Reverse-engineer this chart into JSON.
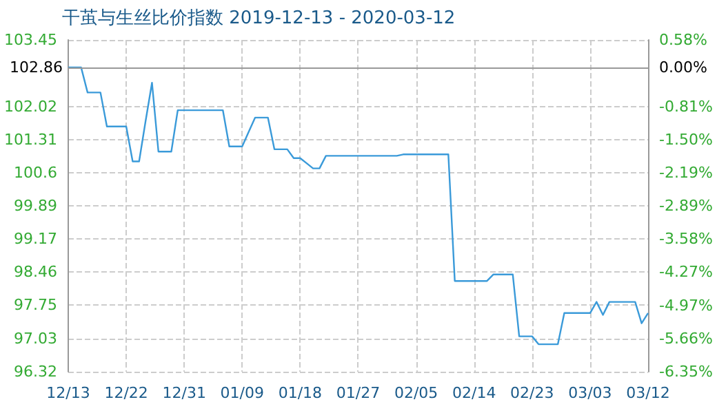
{
  "chart_data": {
    "type": "line",
    "title": "干茧与生丝比价指数 2019-12-13 - 2020-03-12",
    "x": [
      "2019-12-13",
      "2019-12-15",
      "2019-12-16",
      "2019-12-18",
      "2019-12-19",
      "2019-12-22",
      "2019-12-23",
      "2019-12-24",
      "2019-12-25",
      "2019-12-26",
      "2019-12-27",
      "2019-12-29",
      "2019-12-30",
      "2020-01-06",
      "2020-01-07",
      "2020-01-09",
      "2020-01-10",
      "2020-01-11",
      "2020-01-13",
      "2020-01-14",
      "2020-01-16",
      "2020-01-17",
      "2020-01-18",
      "2020-01-19",
      "2020-01-20",
      "2020-01-21",
      "2020-01-22",
      "2020-02-02",
      "2020-02-03",
      "2020-02-10",
      "2020-02-11",
      "2020-02-16",
      "2020-02-17",
      "2020-02-20",
      "2020-02-21",
      "2020-02-23",
      "2020-02-24",
      "2020-02-27",
      "2020-02-28",
      "2020-03-03",
      "2020-03-04",
      "2020-03-05",
      "2020-03-06",
      "2020-03-10",
      "2020-03-11",
      "2020-03-12"
    ],
    "series": [
      {
        "color": "#3a9ad9",
        "values": [
          102.86,
          102.86,
          102.32,
          102.32,
          101.59,
          101.59,
          100.84,
          100.84,
          101.7,
          102.53,
          101.05,
          101.05,
          101.94,
          101.94,
          101.16,
          101.16,
          101.47,
          101.78,
          101.78,
          101.1,
          101.1,
          100.91,
          100.91,
          100.8,
          100.69,
          100.69,
          100.96,
          100.96,
          100.99,
          100.99,
          98.27,
          98.27,
          98.41,
          98.41,
          97.08,
          97.08,
          96.91,
          96.91,
          97.58,
          97.58,
          97.82,
          97.54,
          97.82,
          97.82,
          97.36,
          97.58
        ]
      }
    ],
    "xlim": [
      "2019-12-13",
      "2020-03-12"
    ],
    "xticks": [
      {
        "value": "2019-12-13",
        "label": "12/13"
      },
      {
        "value": "2019-12-22",
        "label": "12/22"
      },
      {
        "value": "2019-12-31",
        "label": "12/31"
      },
      {
        "value": "2020-01-09",
        "label": "01/09"
      },
      {
        "value": "2020-01-18",
        "label": "01/18"
      },
      {
        "value": "2020-01-27",
        "label": "01/27"
      },
      {
        "value": "2020-02-05",
        "label": "02/05"
      },
      {
        "value": "2020-02-14",
        "label": "02/14"
      },
      {
        "value": "2020-02-23",
        "label": "02/23"
      },
      {
        "value": "2020-03-03",
        "label": "03/03"
      },
      {
        "value": "2020-03-12",
        "label": "03/12"
      }
    ],
    "ylim": [
      96.32,
      103.45
    ],
    "yticks": [
      96.32,
      97.03,
      97.75,
      98.46,
      99.17,
      99.89,
      100.6,
      101.31,
      102.02,
      103.45
    ],
    "y2lim": [
      -6.35,
      0.58
    ],
    "y2ticks": [
      {
        "value": -6.35,
        "label": "-6.35%"
      },
      {
        "value": -5.66,
        "label": "-5.66%"
      },
      {
        "value": -4.97,
        "label": "-4.97%"
      },
      {
        "value": -4.27,
        "label": "-4.27%"
      },
      {
        "value": -3.58,
        "label": "-3.58%"
      },
      {
        "value": -2.89,
        "label": "-2.89%"
      },
      {
        "value": -2.19,
        "label": "-2.19%"
      },
      {
        "value": -1.5,
        "label": "-1.50%"
      },
      {
        "value": -0.81,
        "label": "-0.81%"
      },
      {
        "value": 0,
        "label": "0.00%"
      },
      {
        "value": 0.58,
        "label": "0.58%"
      }
    ],
    "ref_lines": [
      {
        "axis": "y",
        "value": 102.86,
        "label": "102.86",
        "color": "#999999"
      }
    ],
    "grid": true,
    "marker": "none",
    "line_style": "solid"
  }
}
